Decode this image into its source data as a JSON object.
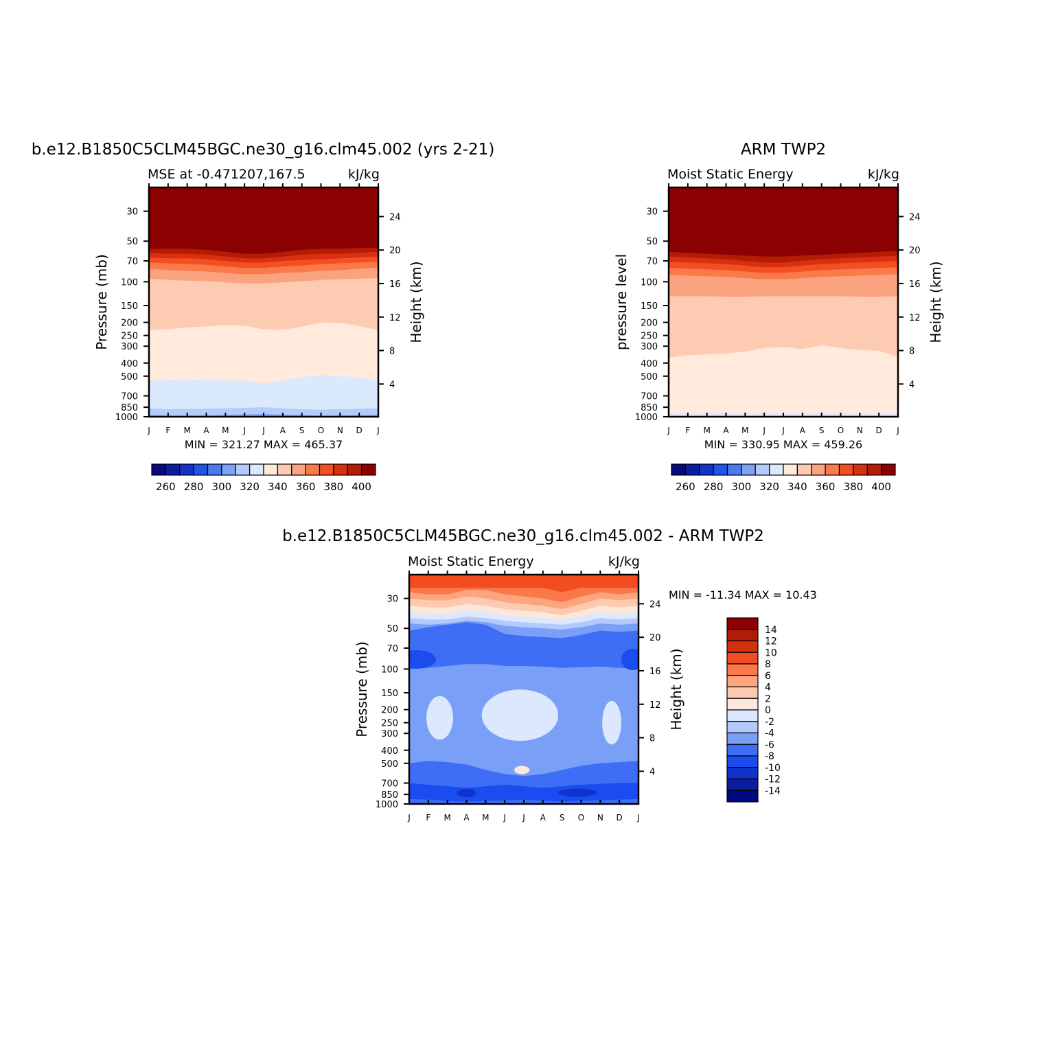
{
  "chart_data": [
    {
      "type": "heatmap",
      "title": "b.e12.B1850C5CLM45BGC.ne30_g16.clm45.002 (yrs 2-21)",
      "subtitle_left": "MSE at -0.471207,167.5",
      "subtitle_right": "kJ/kg",
      "ylabel": "Pressure (mb)",
      "ylabel_right": "Height (km)",
      "stats": "MIN =  321.27  MAX =  465.37",
      "x_ticks": [
        "J",
        "F",
        "M",
        "A",
        "M",
        "J",
        "J",
        "A",
        "S",
        "O",
        "N",
        "D",
        "J"
      ],
      "y_ticks": [
        "30",
        "50",
        "70",
        "100",
        "150",
        "200",
        "250",
        "300",
        "400",
        "500",
        "700",
        "850",
        "1000"
      ],
      "y_ticks_right": [
        "24",
        "20",
        "16",
        "12",
        "8",
        "4"
      ],
      "colorbar_labels": [
        "260",
        "280",
        "300",
        "320",
        "340",
        "360",
        "380",
        "400"
      ],
      "levels": [
        250,
        260,
        270,
        280,
        290,
        300,
        310,
        320,
        330,
        340,
        350,
        360,
        370,
        380,
        390,
        400
      ],
      "boundaries": [
        {
          "level": 400,
          "p": [
            57,
            57,
            57,
            58,
            60,
            62,
            62,
            60,
            58,
            57,
            57,
            56,
            56
          ]
        },
        {
          "level": 390,
          "p": [
            61,
            62,
            62,
            63,
            65,
            67,
            67,
            65,
            63,
            62,
            62,
            61,
            60
          ]
        },
        {
          "level": 380,
          "p": [
            66,
            67,
            67,
            68,
            70,
            72,
            72,
            70,
            69,
            68,
            67,
            66,
            65
          ]
        },
        {
          "level": 370,
          "p": [
            72,
            73,
            74,
            75,
            77,
            79,
            79,
            77,
            76,
            74,
            73,
            72,
            71
          ]
        },
        {
          "level": 360,
          "p": [
            80,
            82,
            83,
            84,
            86,
            88,
            88,
            86,
            85,
            83,
            82,
            80,
            79
          ]
        },
        {
          "level": 350,
          "p": [
            95,
            97,
            98,
            99,
            101,
            103,
            103,
            101,
            99,
            97,
            96,
            95,
            94
          ]
        },
        {
          "level": 340,
          "p": [
            228,
            225,
            218,
            214,
            210,
            212,
            225,
            227,
            215,
            200,
            202,
            213,
            228
          ]
        },
        {
          "level": 330,
          "p": [
            540,
            535,
            533,
            530,
            538,
            540,
            570,
            540,
            510,
            488,
            500,
            515,
            540
          ]
        },
        {
          "level": 320,
          "p": [
            870,
            878,
            875,
            873,
            865,
            860,
            850,
            865,
            880,
            885,
            878,
            872,
            868
          ]
        },
        {
          "level": 310,
          "p": [
            975,
            980,
            982,
            978,
            970,
            960,
            955,
            965,
            975,
            980,
            978,
            975,
            970
          ]
        }
      ]
    },
    {
      "type": "heatmap",
      "title": "ARM TWP2",
      "subtitle_left": "Moist Static Energy",
      "subtitle_right": "kJ/kg",
      "ylabel": "pressure level",
      "ylabel_right": "Height (km)",
      "stats": "MIN =  330.95  MAX =  459.26",
      "x_ticks": [
        "J",
        "F",
        "M",
        "A",
        "M",
        "J",
        "J",
        "A",
        "S",
        "O",
        "N",
        "D",
        "J"
      ],
      "y_ticks": [
        "30",
        "50",
        "70",
        "100",
        "150",
        "200",
        "250",
        "300",
        "400",
        "500",
        "700",
        "850",
        "1000"
      ],
      "y_ticks_right": [
        "24",
        "20",
        "16",
        "12",
        "8",
        "4"
      ],
      "colorbar_labels": [
        "260",
        "280",
        "300",
        "320",
        "340",
        "360",
        "380",
        "400"
      ],
      "levels": [
        250,
        260,
        270,
        280,
        290,
        300,
        310,
        320,
        330,
        340,
        350,
        360,
        370,
        380,
        390,
        400
      ],
      "boundaries": [
        {
          "level": 400,
          "p": [
            60,
            61,
            62,
            63,
            64,
            65,
            65,
            64,
            63,
            62,
            61,
            60,
            59
          ]
        },
        {
          "level": 390,
          "p": [
            65,
            66,
            67,
            68,
            70,
            72,
            72,
            70,
            68,
            67,
            66,
            65,
            64
          ]
        },
        {
          "level": 380,
          "p": [
            71,
            72,
            73,
            74,
            76,
            78,
            78,
            76,
            74,
            73,
            72,
            71,
            70
          ]
        },
        {
          "level": 370,
          "p": [
            79,
            80,
            81,
            82,
            84,
            86,
            86,
            84,
            82,
            81,
            80,
            79,
            78
          ]
        },
        {
          "level": 360,
          "p": [
            89,
            90,
            91,
            92,
            94,
            96,
            96,
            94,
            92,
            91,
            90,
            89,
            88
          ]
        },
        {
          "level": 350,
          "p": [
            128,
            128,
            128,
            129,
            129,
            128,
            128,
            128,
            128,
            128,
            129,
            129,
            128
          ]
        },
        {
          "level": 340,
          "p": [
            365,
            350,
            345,
            340,
            330,
            310,
            305,
            315,
            295,
            310,
            320,
            325,
            360
          ]
        },
        {
          "level": 330,
          "p": [
            950,
            945,
            942,
            940,
            945,
            948,
            948,
            948,
            946,
            945,
            948,
            945,
            942
          ]
        }
      ]
    },
    {
      "type": "heatmap",
      "title": "b.e12.B1850C5CLM45BGC.ne30_g16.clm45.002 - ARM TWP2",
      "subtitle_left": "Moist Static Energy",
      "subtitle_right": "kJ/kg",
      "ylabel": "Pressure (mb)",
      "ylabel_right": "Height (km)",
      "stats": "MIN = -11.34  MAX =   10.43",
      "x_ticks": [
        "J",
        "F",
        "M",
        "A",
        "M",
        "J",
        "J",
        "A",
        "S",
        "O",
        "N",
        "D",
        "J"
      ],
      "y_ticks": [
        "30",
        "50",
        "70",
        "100",
        "150",
        "200",
        "250",
        "300",
        "400",
        "500",
        "700",
        "850",
        "1000"
      ],
      "y_ticks_right": [
        "24",
        "20",
        "16",
        "12",
        "8",
        "4"
      ],
      "colorbar_labels": [
        "14",
        "12",
        "10",
        "8",
        "6",
        "4",
        "2",
        "0",
        "-2",
        "-4",
        "-6",
        "-8",
        "-10",
        "-12",
        "-14"
      ],
      "levels": [
        -15,
        -14,
        -12,
        -10,
        -8,
        -6,
        -4,
        -2,
        0,
        2,
        4,
        6,
        8,
        10,
        12,
        14
      ],
      "boundaries": [
        {
          "level": 8,
          "p": [
            25,
            25,
            25,
            25,
            25,
            25,
            25,
            25,
            27,
            25,
            25,
            25,
            25
          ]
        },
        {
          "level": 6,
          "p": [
            27,
            28,
            28,
            26,
            26,
            28,
            29,
            30,
            32,
            29,
            27,
            28,
            27
          ]
        },
        {
          "level": 4,
          "p": [
            30,
            31,
            31,
            29,
            30,
            32,
            33,
            34,
            36,
            33,
            30,
            31,
            30
          ]
        },
        {
          "level": 2,
          "p": [
            34,
            35,
            35,
            33,
            34,
            36,
            37,
            38,
            40,
            37,
            34,
            35,
            34
          ]
        },
        {
          "level": 0,
          "p": [
            38,
            39,
            39,
            37,
            38,
            40,
            41,
            42,
            43,
            41,
            38,
            39,
            38
          ]
        },
        {
          "level": -2,
          "p": [
            42,
            43,
            43,
            41,
            42,
            44,
            45,
            46,
            47,
            45,
            42,
            43,
            42
          ]
        },
        {
          "level": -4,
          "p": [
            46,
            47,
            46,
            44,
            45,
            48,
            49,
            50,
            51,
            49,
            46,
            47,
            46
          ]
        },
        {
          "level": -6,
          "p": [
            52,
            49,
            47,
            45,
            47,
            55,
            57,
            58,
            59,
            56,
            52,
            53,
            52
          ]
        },
        {
          "level": -8,
          "p": [
            100,
            98,
            95,
            92,
            92,
            95,
            95,
            96,
            98,
            97,
            96,
            98,
            100
          ]
        },
        {
          "level": -6,
          "p": [
            500,
            480,
            490,
            510,
            560,
            600,
            620,
            600,
            560,
            520,
            500,
            490,
            480
          ]
        },
        {
          "level": -8,
          "p": [
            700,
            720,
            740,
            760,
            740,
            720,
            740,
            760,
            740,
            720,
            710,
            700,
            700
          ]
        },
        {
          "level": -10,
          "p": [
            920,
            930,
            950,
            960,
            950,
            940,
            930,
            945,
            960,
            955,
            940,
            930,
            920
          ]
        },
        {
          "level": -8,
          "p": [
            1000,
            1000,
            1000,
            1000,
            1000,
            1000,
            1000,
            1000,
            1000,
            1000,
            1000,
            1000,
            1000
          ]
        }
      ],
      "blobs": [
        {
          "level": -2,
          "m": 5.8,
          "p": 220,
          "rm": 2.0,
          "rp": 0.55
        },
        {
          "level": -2,
          "m": 1.6,
          "p": 230,
          "rm": 0.7,
          "rp": 0.45
        },
        {
          "level": -2,
          "m": 10.6,
          "p": 250,
          "rm": 0.5,
          "rp": 0.45
        },
        {
          "level": 0,
          "m": 5.9,
          "p": 560,
          "rm": 0.4,
          "rp": 0.05
        },
        {
          "level": -12,
          "m": 3.0,
          "p": 830,
          "rm": 0.5,
          "rp": 0.05
        },
        {
          "level": -12,
          "m": 8.8,
          "p": 825,
          "rm": 1.0,
          "rp": 0.05
        },
        {
          "level": -10,
          "m": 0.4,
          "p": 85,
          "rm": 1.0,
          "rp": 0.17
        },
        {
          "level": -10,
          "m": 11.7,
          "p": 85,
          "rm": 0.6,
          "rp": 0.2
        }
      ]
    }
  ]
}
